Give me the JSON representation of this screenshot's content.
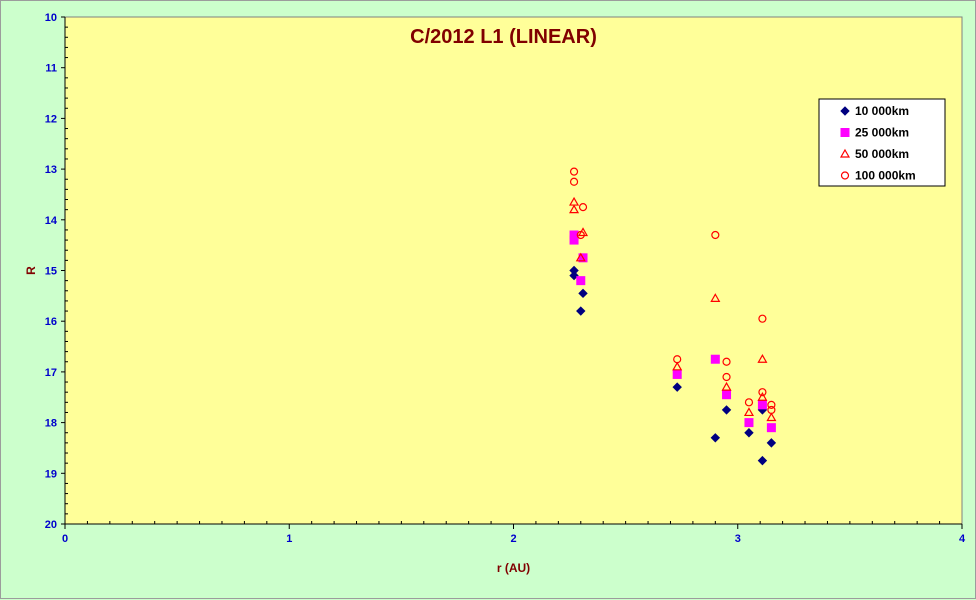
{
  "chart_data": {
    "type": "scatter",
    "title": "C/2012 L1 (LINEAR)",
    "xlabel": "r (AU)",
    "ylabel": "R",
    "xlim": [
      0,
      4
    ],
    "ylim": [
      10,
      20
    ],
    "y_inverted": true,
    "x_ticks": [
      "0",
      "1",
      "2",
      "3",
      "4"
    ],
    "y_ticks": [
      "10",
      "11",
      "12",
      "13",
      "14",
      "15",
      "16",
      "17",
      "18",
      "19",
      "20"
    ],
    "grid": false,
    "legend_position": "top-right",
    "plot_background": "#ffff99",
    "series": [
      {
        "name": "10 000km",
        "marker": "diamond",
        "color": "#000080",
        "points": [
          [
            2.27,
            15.0
          ],
          [
            2.27,
            15.1
          ],
          [
            2.3,
            15.8
          ],
          [
            2.31,
            15.45
          ],
          [
            2.73,
            17.3
          ],
          [
            2.9,
            18.3
          ],
          [
            2.95,
            17.75
          ],
          [
            3.05,
            18.2
          ],
          [
            3.11,
            17.75
          ],
          [
            3.11,
            18.75
          ],
          [
            3.15,
            18.4
          ]
        ]
      },
      {
        "name": "25 000km",
        "marker": "square",
        "color": "#ff00ff",
        "points": [
          [
            2.27,
            14.3
          ],
          [
            2.27,
            14.4
          ],
          [
            2.3,
            15.2
          ],
          [
            2.31,
            14.75
          ],
          [
            2.73,
            17.05
          ],
          [
            2.9,
            16.75
          ],
          [
            2.95,
            17.45
          ],
          [
            3.05,
            18.0
          ],
          [
            3.11,
            17.65
          ],
          [
            3.15,
            18.1
          ]
        ]
      },
      {
        "name": "50 000km",
        "marker": "triangle",
        "color": "#ff0000",
        "points": [
          [
            2.27,
            13.65
          ],
          [
            2.27,
            13.8
          ],
          [
            2.3,
            14.75
          ],
          [
            2.31,
            14.25
          ],
          [
            2.73,
            16.9
          ],
          [
            2.9,
            15.55
          ],
          [
            2.95,
            17.3
          ],
          [
            3.05,
            17.8
          ],
          [
            3.11,
            16.75
          ],
          [
            3.11,
            17.5
          ],
          [
            3.15,
            17.9
          ]
        ]
      },
      {
        "name": "100 000km",
        "marker": "circle",
        "color": "#ff0000",
        "points": [
          [
            2.27,
            13.05
          ],
          [
            2.27,
            13.25
          ],
          [
            2.3,
            14.3
          ],
          [
            2.31,
            13.75
          ],
          [
            2.73,
            16.75
          ],
          [
            2.9,
            14.3
          ],
          [
            2.95,
            16.8
          ],
          [
            2.95,
            17.1
          ],
          [
            3.05,
            17.6
          ],
          [
            3.11,
            15.95
          ],
          [
            3.11,
            17.4
          ],
          [
            3.15,
            17.65
          ],
          [
            3.15,
            17.75
          ]
        ]
      }
    ]
  }
}
